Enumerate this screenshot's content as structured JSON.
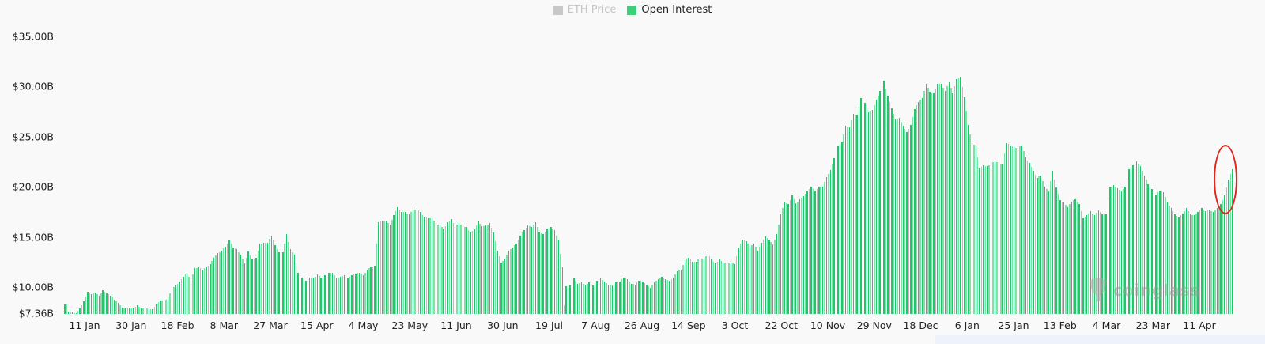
{
  "legend": {
    "items": [
      {
        "label": "ETH Price",
        "color": "#c8c8c8",
        "active": false
      },
      {
        "label": "Open Interest",
        "color": "#3ccf7c",
        "active": true
      }
    ]
  },
  "watermark": {
    "text": "coinglass"
  },
  "colors": {
    "bar_dark": "#1ec86a",
    "bar_light": "#7fe0a8",
    "highlight": "#e3241b",
    "background": "#f9f9f9"
  },
  "chart_data": {
    "type": "bar",
    "title": "",
    "xlabel": "",
    "ylabel": "Open Interest",
    "series": [
      {
        "name": "Open Interest",
        "unit": "USD billions"
      }
    ],
    "legend": [
      "ETH Price",
      "Open Interest"
    ],
    "legend_position": "top-center",
    "grid": false,
    "ylim": [
      7.36,
      35.0
    ],
    "y_ticks": [
      "$7.36B",
      "$10.00B",
      "$15.00B",
      "$20.00B",
      "$25.00B",
      "$30.00B",
      "$35.00B"
    ],
    "y_tick_values": [
      7.36,
      10,
      15,
      20,
      25,
      30,
      35
    ],
    "x_ticks": [
      "11 Jan",
      "30 Jan",
      "18 Feb",
      "8 Mar",
      "27 Mar",
      "15 Apr",
      "4 May",
      "23 May",
      "11 Jun",
      "30 Jun",
      "19 Jul",
      "7 Aug",
      "26 Aug",
      "14 Sep",
      "3 Oct",
      "22 Oct",
      "10 Nov",
      "29 Nov",
      "18 Dec",
      "6 Jan",
      "25 Jan",
      "13 Feb",
      "4 Mar",
      "23 Mar",
      "11 Apr"
    ],
    "x_tick_interval_days": 19,
    "annotation": "red ellipse highlighting the final bars (latest OI spike to ~$21.8B)",
    "keyframes": [
      [
        0,
        8.3
      ],
      [
        1,
        8.4
      ],
      [
        2,
        7.6
      ],
      [
        4,
        7.5
      ],
      [
        6,
        7.4
      ],
      [
        8,
        7.9
      ],
      [
        10,
        8.6
      ],
      [
        12,
        9.6
      ],
      [
        14,
        9.3
      ],
      [
        16,
        9.5
      ],
      [
        18,
        9.2
      ],
      [
        20,
        9.7
      ],
      [
        22,
        9.4
      ],
      [
        24,
        9.2
      ],
      [
        26,
        8.8
      ],
      [
        28,
        8.5
      ],
      [
        30,
        8.0
      ],
      [
        33,
        8.0
      ],
      [
        36,
        7.9
      ],
      [
        38,
        8.2
      ],
      [
        40,
        7.9
      ],
      [
        42,
        8.1
      ],
      [
        44,
        7.8
      ],
      [
        46,
        7.8
      ],
      [
        48,
        8.4
      ],
      [
        50,
        8.7
      ],
      [
        52,
        8.7
      ],
      [
        54,
        8.9
      ],
      [
        56,
        9.9
      ],
      [
        58,
        10.2
      ],
      [
        60,
        10.6
      ],
      [
        62,
        11.1
      ],
      [
        64,
        11.5
      ],
      [
        66,
        10.7
      ],
      [
        68,
        11.9
      ],
      [
        70,
        12.0
      ],
      [
        72,
        11.8
      ],
      [
        74,
        12.0
      ],
      [
        76,
        12.3
      ],
      [
        78,
        13.0
      ],
      [
        80,
        13.4
      ],
      [
        82,
        13.7
      ],
      [
        84,
        14.1
      ],
      [
        86,
        14.7
      ],
      [
        88,
        14.0
      ],
      [
        90,
        13.8
      ],
      [
        92,
        13.3
      ],
      [
        94,
        12.4
      ],
      [
        96,
        13.6
      ],
      [
        98,
        12.8
      ],
      [
        100,
        13.0
      ],
      [
        102,
        14.3
      ],
      [
        104,
        14.5
      ],
      [
        106,
        14.5
      ],
      [
        108,
        15.2
      ],
      [
        110,
        14.2
      ],
      [
        112,
        13.5
      ],
      [
        114,
        13.5
      ],
      [
        116,
        15.3
      ],
      [
        118,
        13.8
      ],
      [
        120,
        13.3
      ],
      [
        122,
        11.5
      ],
      [
        124,
        11.0
      ],
      [
        126,
        10.7
      ],
      [
        128,
        11.0
      ],
      [
        130,
        10.9
      ],
      [
        132,
        11.3
      ],
      [
        134,
        11.0
      ],
      [
        136,
        11.2
      ],
      [
        138,
        11.5
      ],
      [
        140,
        11.5
      ],
      [
        142,
        10.9
      ],
      [
        144,
        11.1
      ],
      [
        146,
        11.2
      ],
      [
        148,
        11.0
      ],
      [
        150,
        11.2
      ],
      [
        152,
        11.4
      ],
      [
        154,
        11.5
      ],
      [
        156,
        11.2
      ],
      [
        158,
        11.8
      ],
      [
        160,
        12.0
      ],
      [
        162,
        12.2
      ],
      [
        164,
        16.5
      ],
      [
        166,
        16.7
      ],
      [
        168,
        16.6
      ],
      [
        170,
        16.3
      ],
      [
        172,
        17.2
      ],
      [
        174,
        18.0
      ],
      [
        176,
        17.5
      ],
      [
        178,
        17.5
      ],
      [
        180,
        17.3
      ],
      [
        182,
        17.7
      ],
      [
        184,
        17.9
      ],
      [
        186,
        17.5
      ],
      [
        188,
        17.0
      ],
      [
        190,
        16.9
      ],
      [
        192,
        16.9
      ],
      [
        194,
        16.4
      ],
      [
        196,
        16.2
      ],
      [
        198,
        15.8
      ],
      [
        200,
        16.5
      ],
      [
        202,
        16.8
      ],
      [
        204,
        16.0
      ],
      [
        206,
        16.5
      ],
      [
        208,
        16.1
      ],
      [
        210,
        16.0
      ],
      [
        212,
        15.5
      ],
      [
        214,
        15.8
      ],
      [
        216,
        16.6
      ],
      [
        218,
        16.1
      ],
      [
        220,
        16.2
      ],
      [
        222,
        16.4
      ],
      [
        224,
        15.5
      ],
      [
        226,
        13.7
      ],
      [
        228,
        12.5
      ],
      [
        230,
        12.8
      ],
      [
        232,
        13.7
      ],
      [
        234,
        14.0
      ],
      [
        236,
        14.4
      ],
      [
        238,
        15.2
      ],
      [
        240,
        15.7
      ],
      [
        242,
        16.2
      ],
      [
        244,
        16.0
      ],
      [
        246,
        16.5
      ],
      [
        248,
        15.5
      ],
      [
        250,
        15.3
      ],
      [
        252,
        15.9
      ],
      [
        254,
        16.0
      ],
      [
        256,
        15.7
      ],
      [
        258,
        14.7
      ],
      [
        260,
        12.0
      ],
      [
        261,
        8.2
      ],
      [
        262,
        10.1
      ],
      [
        264,
        10.2
      ],
      [
        266,
        10.9
      ],
      [
        268,
        10.4
      ],
      [
        270,
        10.5
      ],
      [
        272,
        10.3
      ],
      [
        274,
        10.5
      ],
      [
        276,
        10.2
      ],
      [
        278,
        10.7
      ],
      [
        280,
        10.9
      ],
      [
        282,
        10.6
      ],
      [
        284,
        10.3
      ],
      [
        286,
        10.2
      ],
      [
        288,
        10.6
      ],
      [
        290,
        10.6
      ],
      [
        292,
        11.0
      ],
      [
        294,
        10.8
      ],
      [
        296,
        10.4
      ],
      [
        298,
        10.3
      ],
      [
        300,
        10.7
      ],
      [
        302,
        10.6
      ],
      [
        304,
        10.3
      ],
      [
        306,
        10.0
      ],
      [
        308,
        10.5
      ],
      [
        310,
        10.8
      ],
      [
        312,
        11.1
      ],
      [
        314,
        10.8
      ],
      [
        316,
        10.7
      ],
      [
        318,
        11.0
      ],
      [
        320,
        11.6
      ],
      [
        322,
        11.8
      ],
      [
        324,
        12.7
      ],
      [
        326,
        13.0
      ],
      [
        328,
        12.6
      ],
      [
        330,
        12.6
      ],
      [
        332,
        13.0
      ],
      [
        334,
        12.8
      ],
      [
        336,
        13.5
      ],
      [
        338,
        12.8
      ],
      [
        340,
        12.4
      ],
      [
        342,
        12.8
      ],
      [
        344,
        12.5
      ],
      [
        346,
        12.3
      ],
      [
        348,
        12.5
      ],
      [
        350,
        12.3
      ],
      [
        352,
        14.0
      ],
      [
        354,
        14.8
      ],
      [
        356,
        14.6
      ],
      [
        358,
        14.1
      ],
      [
        360,
        14.4
      ],
      [
        362,
        13.7
      ],
      [
        364,
        14.5
      ],
      [
        366,
        15.1
      ],
      [
        368,
        14.8
      ],
      [
        370,
        14.3
      ],
      [
        372,
        15.3
      ],
      [
        374,
        17.3
      ],
      [
        376,
        18.5
      ],
      [
        378,
        18.3
      ],
      [
        380,
        19.2
      ],
      [
        382,
        18.4
      ],
      [
        384,
        18.8
      ],
      [
        386,
        19.1
      ],
      [
        388,
        19.6
      ],
      [
        390,
        20.1
      ],
      [
        392,
        19.6
      ],
      [
        394,
        20.0
      ],
      [
        396,
        20.1
      ],
      [
        398,
        21.0
      ],
      [
        400,
        21.7
      ],
      [
        402,
        22.9
      ],
      [
        404,
        24.2
      ],
      [
        406,
        24.5
      ],
      [
        408,
        26.1
      ],
      [
        410,
        26.0
      ],
      [
        412,
        27.3
      ],
      [
        414,
        27.2
      ],
      [
        416,
        28.9
      ],
      [
        418,
        28.4
      ],
      [
        420,
        27.5
      ],
      [
        422,
        27.7
      ],
      [
        424,
        28.7
      ],
      [
        426,
        29.6
      ],
      [
        428,
        30.6
      ],
      [
        430,
        29.1
      ],
      [
        432,
        27.9
      ],
      [
        434,
        26.8
      ],
      [
        436,
        26.9
      ],
      [
        438,
        26.1
      ],
      [
        440,
        25.5
      ],
      [
        442,
        26.2
      ],
      [
        444,
        27.8
      ],
      [
        446,
        28.5
      ],
      [
        448,
        28.9
      ],
      [
        450,
        30.3
      ],
      [
        452,
        29.5
      ],
      [
        454,
        29.4
      ],
      [
        456,
        30.3
      ],
      [
        458,
        30.3
      ],
      [
        460,
        29.6
      ],
      [
        462,
        30.5
      ],
      [
        464,
        29.4
      ],
      [
        466,
        30.8
      ],
      [
        468,
        31.0
      ],
      [
        470,
        29.0
      ],
      [
        472,
        26.2
      ],
      [
        474,
        24.4
      ],
      [
        476,
        24.1
      ],
      [
        478,
        21.9
      ],
      [
        480,
        22.2
      ],
      [
        482,
        22.1
      ],
      [
        484,
        22.3
      ],
      [
        486,
        22.7
      ],
      [
        488,
        22.3
      ],
      [
        490,
        22.3
      ],
      [
        492,
        24.4
      ],
      [
        494,
        24.2
      ],
      [
        496,
        24.0
      ],
      [
        498,
        23.9
      ],
      [
        500,
        24.2
      ],
      [
        502,
        23.0
      ],
      [
        504,
        22.4
      ],
      [
        506,
        21.6
      ],
      [
        508,
        20.9
      ],
      [
        510,
        21.2
      ],
      [
        512,
        20.1
      ],
      [
        514,
        19.6
      ],
      [
        516,
        21.6
      ],
      [
        518,
        20.0
      ],
      [
        520,
        18.7
      ],
      [
        522,
        18.5
      ],
      [
        524,
        18.0
      ],
      [
        526,
        18.6
      ],
      [
        528,
        18.8
      ],
      [
        530,
        18.3
      ],
      [
        532,
        16.9
      ],
      [
        534,
        17.2
      ],
      [
        536,
        17.6
      ],
      [
        538,
        17.2
      ],
      [
        540,
        17.7
      ],
      [
        542,
        17.3
      ],
      [
        544,
        17.3
      ],
      [
        546,
        20.0
      ],
      [
        548,
        20.2
      ],
      [
        550,
        19.9
      ],
      [
        552,
        19.6
      ],
      [
        554,
        20.1
      ],
      [
        556,
        21.8
      ],
      [
        558,
        22.2
      ],
      [
        560,
        22.6
      ],
      [
        562,
        22.1
      ],
      [
        564,
        21.2
      ],
      [
        566,
        20.3
      ],
      [
        568,
        19.8
      ],
      [
        570,
        19.3
      ],
      [
        572,
        19.7
      ],
      [
        574,
        19.5
      ],
      [
        576,
        18.5
      ],
      [
        578,
        17.9
      ],
      [
        580,
        17.3
      ],
      [
        582,
        17.0
      ],
      [
        584,
        17.4
      ],
      [
        586,
        17.9
      ],
      [
        588,
        17.3
      ],
      [
        590,
        17.2
      ],
      [
        592,
        17.5
      ],
      [
        594,
        17.9
      ],
      [
        596,
        17.6
      ],
      [
        598,
        17.8
      ],
      [
        600,
        17.5
      ],
      [
        602,
        17.9
      ],
      [
        604,
        18.3
      ],
      [
        606,
        19.2
      ],
      [
        608,
        20.8
      ],
      [
        610,
        21.8
      ]
    ]
  }
}
